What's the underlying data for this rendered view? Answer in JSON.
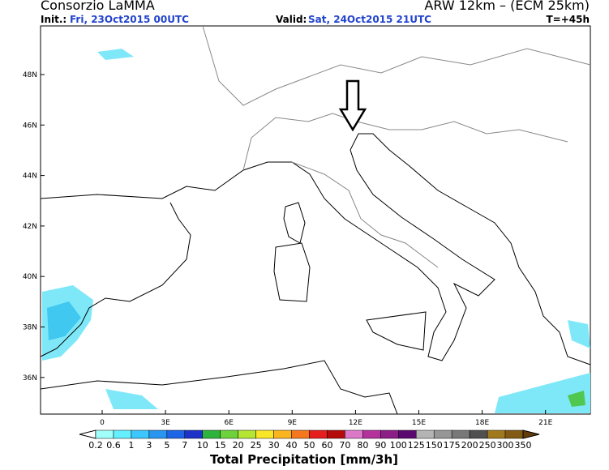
{
  "header": {
    "title": "Consorzio LaMMA",
    "model": "ARW 12km – (ECM 25km)",
    "init_label": "Init.:",
    "init_value": "Fri, 23Oct2015 00UTC",
    "valid_label": "Valid:",
    "valid_value": "Sat, 24Oct2015 21UTC",
    "lead_time": "T=+45h"
  },
  "map": {
    "lat_labels": [
      "48N",
      "46N",
      "44N",
      "42N",
      "40N",
      "38N",
      "36N"
    ],
    "lon_labels": [
      "0",
      "3E",
      "6E",
      "9E",
      "12E",
      "15E",
      "18E",
      "21E"
    ]
  },
  "colorbar": {
    "labels": [
      "0.2",
      "0.6",
      "1",
      "3",
      "5",
      "7",
      "10",
      "15",
      "20",
      "25",
      "30",
      "40",
      "50",
      "60",
      "70",
      "80",
      "90",
      "100",
      "125",
      "150",
      "175",
      "200",
      "250",
      "300",
      "350"
    ],
    "colors": [
      "#ffffff",
      "#a0fffa",
      "#64f0ff",
      "#3cc8ff",
      "#2896f0",
      "#1e64e6",
      "#1e32c8",
      "#2eb43c",
      "#6ed23c",
      "#b4e632",
      "#fae628",
      "#fab41e",
      "#f5781e",
      "#e61e1e",
      "#b40a0a",
      "#dc78c8",
      "#b4329b",
      "#8c1e87",
      "#5a0a6e",
      "#b4b4b4",
      "#969696",
      "#787878",
      "#505050",
      "#a0781e",
      "#825a14",
      "#643c0a"
    ],
    "title": "Total Precipitation [mm/3h]"
  }
}
